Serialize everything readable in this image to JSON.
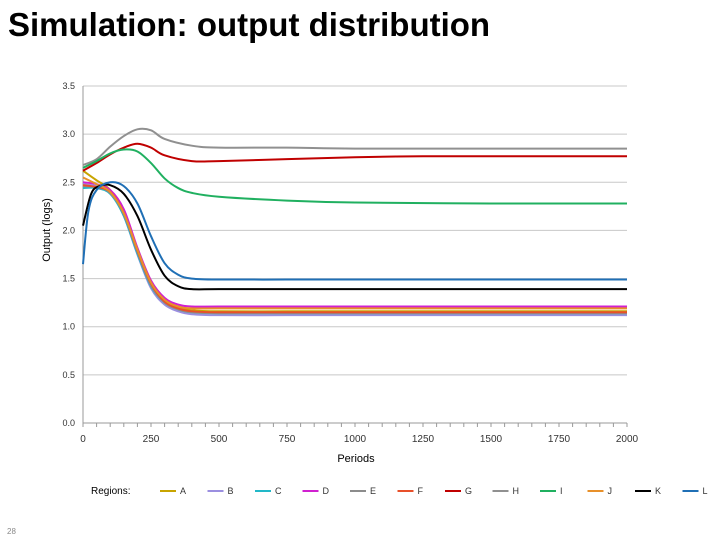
{
  "slide": {
    "title": "Simulation: output distribution",
    "page_number": "28"
  },
  "chart_data": {
    "type": "line",
    "xlabel": "Periods",
    "ylabel": "Output (logs)",
    "xlim": [
      0,
      2000
    ],
    "ylim": [
      0,
      3.5
    ],
    "x_ticks": [
      "0",
      "250",
      "500",
      "750",
      "1000",
      "1250",
      "1500",
      "1750",
      "2000"
    ],
    "y_ticks": [
      "0.0",
      "0.5",
      "1.0",
      "1.5",
      "2.0",
      "2.5",
      "3.0",
      "3.5"
    ],
    "grid": "horizontal",
    "legend_title": "Regions:",
    "legend_position": "bottom",
    "series": [
      {
        "name": "A",
        "color": "#c8a400",
        "points": [
          [
            0,
            2.62
          ],
          [
            50,
            2.52
          ],
          [
            100,
            2.42
          ],
          [
            150,
            2.2
          ],
          [
            200,
            1.8
          ],
          [
            250,
            1.45
          ],
          [
            300,
            1.27
          ],
          [
            350,
            1.2
          ],
          [
            400,
            1.17
          ],
          [
            500,
            1.16
          ],
          [
            750,
            1.16
          ],
          [
            1000,
            1.16
          ],
          [
            1500,
            1.16
          ],
          [
            2000,
            1.16
          ]
        ]
      },
      {
        "name": "B",
        "color": "#9b8fe0",
        "points": [
          [
            0,
            2.48
          ],
          [
            50,
            2.46
          ],
          [
            100,
            2.4
          ],
          [
            150,
            2.15
          ],
          [
            200,
            1.75
          ],
          [
            250,
            1.4
          ],
          [
            300,
            1.23
          ],
          [
            350,
            1.16
          ],
          [
            400,
            1.13
          ],
          [
            500,
            1.12
          ],
          [
            750,
            1.12
          ],
          [
            1000,
            1.12
          ],
          [
            1500,
            1.12
          ],
          [
            2000,
            1.12
          ]
        ]
      },
      {
        "name": "C",
        "color": "#22b8c8",
        "points": [
          [
            0,
            2.44
          ],
          [
            50,
            2.44
          ],
          [
            100,
            2.38
          ],
          [
            150,
            2.15
          ],
          [
            200,
            1.76
          ],
          [
            250,
            1.42
          ],
          [
            300,
            1.25
          ],
          [
            350,
            1.18
          ],
          [
            400,
            1.15
          ],
          [
            500,
            1.14
          ],
          [
            750,
            1.14
          ],
          [
            1000,
            1.14
          ],
          [
            1500,
            1.14
          ],
          [
            2000,
            1.14
          ]
        ]
      },
      {
        "name": "D",
        "color": "#d020d0",
        "points": [
          [
            0,
            2.5
          ],
          [
            50,
            2.48
          ],
          [
            100,
            2.42
          ],
          [
            150,
            2.22
          ],
          [
            200,
            1.82
          ],
          [
            250,
            1.48
          ],
          [
            300,
            1.3
          ],
          [
            350,
            1.23
          ],
          [
            400,
            1.21
          ],
          [
            500,
            1.21
          ],
          [
            750,
            1.21
          ],
          [
            1000,
            1.21
          ],
          [
            1500,
            1.21
          ],
          [
            2000,
            1.21
          ]
        ]
      },
      {
        "name": "E",
        "color": "#8c8c8c",
        "points": [
          [
            0,
            2.46
          ],
          [
            50,
            2.45
          ],
          [
            100,
            2.39
          ],
          [
            150,
            2.17
          ],
          [
            200,
            1.78
          ],
          [
            250,
            1.43
          ],
          [
            300,
            1.25
          ],
          [
            350,
            1.18
          ],
          [
            400,
            1.15
          ],
          [
            500,
            1.14
          ],
          [
            750,
            1.14
          ],
          [
            1000,
            1.14
          ],
          [
            1500,
            1.14
          ],
          [
            2000,
            1.14
          ]
        ]
      },
      {
        "name": "F",
        "color": "#e8502a",
        "points": [
          [
            0,
            2.47
          ],
          [
            50,
            2.45
          ],
          [
            100,
            2.4
          ],
          [
            150,
            2.18
          ],
          [
            200,
            1.79
          ],
          [
            250,
            1.45
          ],
          [
            300,
            1.26
          ],
          [
            350,
            1.19
          ],
          [
            400,
            1.16
          ],
          [
            500,
            1.15
          ],
          [
            750,
            1.15
          ],
          [
            1000,
            1.15
          ],
          [
            1500,
            1.15
          ],
          [
            2000,
            1.15
          ]
        ]
      },
      {
        "name": "G",
        "color": "#c00000",
        "points": [
          [
            0,
            2.62
          ],
          [
            50,
            2.7
          ],
          [
            100,
            2.79
          ],
          [
            150,
            2.86
          ],
          [
            200,
            2.9
          ],
          [
            250,
            2.86
          ],
          [
            300,
            2.78
          ],
          [
            400,
            2.72
          ],
          [
            500,
            2.72
          ],
          [
            750,
            2.74
          ],
          [
            1000,
            2.76
          ],
          [
            1250,
            2.77
          ],
          [
            1500,
            2.77
          ],
          [
            1750,
            2.77
          ],
          [
            2000,
            2.77
          ]
        ]
      },
      {
        "name": "H",
        "color": "#909090",
        "points": [
          [
            0,
            2.68
          ],
          [
            50,
            2.74
          ],
          [
            100,
            2.87
          ],
          [
            150,
            2.98
          ],
          [
            200,
            3.05
          ],
          [
            250,
            3.04
          ],
          [
            300,
            2.95
          ],
          [
            400,
            2.88
          ],
          [
            500,
            2.86
          ],
          [
            750,
            2.86
          ],
          [
            1000,
            2.85
          ],
          [
            1500,
            2.85
          ],
          [
            2000,
            2.85
          ]
        ]
      },
      {
        "name": "I",
        "color": "#20b060",
        "points": [
          [
            0,
            2.65
          ],
          [
            50,
            2.72
          ],
          [
            100,
            2.8
          ],
          [
            150,
            2.84
          ],
          [
            200,
            2.82
          ],
          [
            250,
            2.7
          ],
          [
            300,
            2.54
          ],
          [
            350,
            2.44
          ],
          [
            400,
            2.39
          ],
          [
            500,
            2.35
          ],
          [
            750,
            2.31
          ],
          [
            1000,
            2.29
          ],
          [
            1500,
            2.28
          ],
          [
            2000,
            2.28
          ]
        ]
      },
      {
        "name": "J",
        "color": "#e8902a",
        "points": [
          [
            0,
            2.55
          ],
          [
            50,
            2.48
          ],
          [
            100,
            2.4
          ],
          [
            150,
            2.18
          ],
          [
            200,
            1.8
          ],
          [
            250,
            1.46
          ],
          [
            300,
            1.28
          ],
          [
            350,
            1.21
          ],
          [
            400,
            1.19
          ],
          [
            500,
            1.19
          ],
          [
            750,
            1.19
          ],
          [
            1000,
            1.19
          ],
          [
            1500,
            1.19
          ],
          [
            2000,
            1.19
          ]
        ]
      },
      {
        "name": "K",
        "color": "#000000",
        "points": [
          [
            0,
            2.05
          ],
          [
            30,
            2.38
          ],
          [
            60,
            2.46
          ],
          [
            100,
            2.47
          ],
          [
            150,
            2.38
          ],
          [
            200,
            2.15
          ],
          [
            250,
            1.8
          ],
          [
            300,
            1.53
          ],
          [
            350,
            1.42
          ],
          [
            400,
            1.39
          ],
          [
            500,
            1.39
          ],
          [
            750,
            1.39
          ],
          [
            1000,
            1.39
          ],
          [
            1500,
            1.39
          ],
          [
            2000,
            1.39
          ]
        ]
      },
      {
        "name": "L",
        "color": "#1f6fb5",
        "points": [
          [
            0,
            1.65
          ],
          [
            20,
            2.2
          ],
          [
            50,
            2.42
          ],
          [
            100,
            2.5
          ],
          [
            150,
            2.46
          ],
          [
            200,
            2.28
          ],
          [
            250,
            1.94
          ],
          [
            300,
            1.66
          ],
          [
            350,
            1.54
          ],
          [
            400,
            1.5
          ],
          [
            500,
            1.49
          ],
          [
            750,
            1.49
          ],
          [
            1000,
            1.49
          ],
          [
            1500,
            1.49
          ],
          [
            2000,
            1.49
          ]
        ]
      }
    ]
  }
}
